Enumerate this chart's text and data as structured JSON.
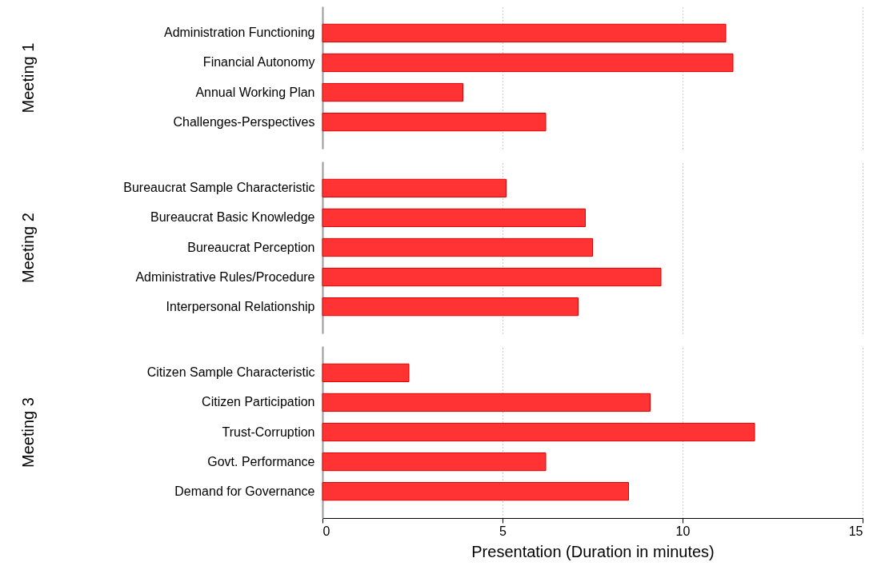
{
  "chart_data": [
    {
      "type": "bar",
      "orientation": "horizontal",
      "ylabel": "Meeting 1",
      "categories": [
        "Administration Functioning",
        "Financial Autonomy",
        "Annual Working Plan",
        "Challenges-Perspectives"
      ],
      "values": [
        11.2,
        11.4,
        3.9,
        6.2
      ],
      "color": "#ff3333",
      "xlim": [
        0,
        15
      ],
      "xticks": [
        0,
        5,
        10,
        15
      ],
      "grid": "x",
      "tick_labels": "y"
    },
    {
      "type": "bar",
      "orientation": "horizontal",
      "ylabel": "Meeting 2",
      "categories": [
        "Bureaucrat Sample Characteristic",
        "Bureaucrat Basic Knowledge",
        "Bureaucrat Perception",
        "Administrative Rules/Procedure",
        "Interpersonal Relationship"
      ],
      "values": [
        5.1,
        7.3,
        7.5,
        9.4,
        7.1
      ],
      "color": "#ff3333",
      "xlim": [
        0,
        15
      ],
      "xticks": [
        0,
        5,
        10,
        15
      ],
      "grid": "x",
      "tick_labels": "y"
    },
    {
      "type": "bar",
      "orientation": "horizontal",
      "ylabel": "Meeting 3",
      "xlabel": "Presentation (Duration in minutes)",
      "categories": [
        "Citizen Sample Characteristic",
        "Citizen Participation",
        "Trust-Corruption",
        "Govt. Performance",
        "Demand for Governance"
      ],
      "values": [
        2.4,
        9.1,
        12.0,
        6.2,
        8.5
      ],
      "color": "#ff3333",
      "xlim": [
        0,
        15
      ],
      "xticks": [
        0,
        5,
        10,
        15
      ],
      "grid": "x"
    }
  ]
}
